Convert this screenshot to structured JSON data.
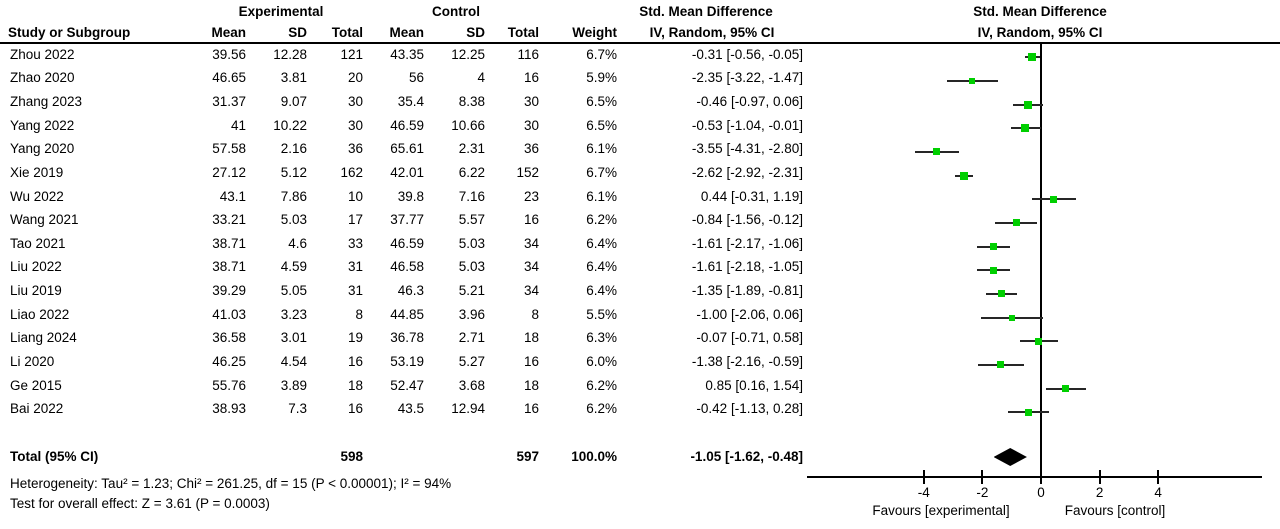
{
  "headers": {
    "group_experimental": "Experimental",
    "group_control": "Control",
    "smd_text_col_line1": "Std. Mean Difference",
    "smd_text_col_line2": "IV, Random, 95% CI",
    "smd_plot_col_line1": "Std. Mean Difference",
    "smd_plot_col_line2": "IV, Random, 95% CI",
    "study": "Study or Subgroup",
    "mean": "Mean",
    "sd": "SD",
    "total": "Total",
    "weight": "Weight"
  },
  "table": {
    "rows": [
      {
        "study": "Zhou 2022",
        "e_mean": "39.56",
        "e_sd": "12.28",
        "e_total": "121",
        "c_mean": "43.35",
        "c_sd": "12.25",
        "c_total": "116",
        "weight": "6.7%",
        "ci": "-0.31 [-0.56, -0.05]"
      },
      {
        "study": "Zhao 2020",
        "e_mean": "46.65",
        "e_sd": "3.81",
        "e_total": "20",
        "c_mean": "56",
        "c_sd": "4",
        "c_total": "16",
        "weight": "5.9%",
        "ci": "-2.35 [-3.22, -1.47]"
      },
      {
        "study": "Zhang 2023",
        "e_mean": "31.37",
        "e_sd": "9.07",
        "e_total": "30",
        "c_mean": "35.4",
        "c_sd": "8.38",
        "c_total": "30",
        "weight": "6.5%",
        "ci": "-0.46 [-0.97, 0.06]"
      },
      {
        "study": "Yang 2022",
        "e_mean": "41",
        "e_sd": "10.22",
        "e_total": "30",
        "c_mean": "46.59",
        "c_sd": "10.66",
        "c_total": "30",
        "weight": "6.5%",
        "ci": "-0.53 [-1.04, -0.01]"
      },
      {
        "study": "Yang 2020",
        "e_mean": "57.58",
        "e_sd": "2.16",
        "e_total": "36",
        "c_mean": "65.61",
        "c_sd": "2.31",
        "c_total": "36",
        "weight": "6.1%",
        "ci": "-3.55 [-4.31, -2.80]"
      },
      {
        "study": "Xie 2019",
        "e_mean": "27.12",
        "e_sd": "5.12",
        "e_total": "162",
        "c_mean": "42.01",
        "c_sd": "6.22",
        "c_total": "152",
        "weight": "6.7%",
        "ci": "-2.62 [-2.92, -2.31]"
      },
      {
        "study": "Wu 2022",
        "e_mean": "43.1",
        "e_sd": "7.86",
        "e_total": "10",
        "c_mean": "39.8",
        "c_sd": "7.16",
        "c_total": "23",
        "weight": "6.1%",
        "ci": "0.44 [-0.31, 1.19]"
      },
      {
        "study": "Wang 2021",
        "e_mean": "33.21",
        "e_sd": "5.03",
        "e_total": "17",
        "c_mean": "37.77",
        "c_sd": "5.57",
        "c_total": "16",
        "weight": "6.2%",
        "ci": "-0.84 [-1.56, -0.12]"
      },
      {
        "study": "Tao 2021",
        "e_mean": "38.71",
        "e_sd": "4.6",
        "e_total": "33",
        "c_mean": "46.59",
        "c_sd": "5.03",
        "c_total": "34",
        "weight": "6.4%",
        "ci": "-1.61 [-2.17, -1.06]"
      },
      {
        "study": "Liu 2022",
        "e_mean": "38.71",
        "e_sd": "4.59",
        "e_total": "31",
        "c_mean": "46.58",
        "c_sd": "5.03",
        "c_total": "34",
        "weight": "6.4%",
        "ci": "-1.61 [-2.18, -1.05]"
      },
      {
        "study": "Liu 2019",
        "e_mean": "39.29",
        "e_sd": "5.05",
        "e_total": "31",
        "c_mean": "46.3",
        "c_sd": "5.21",
        "c_total": "34",
        "weight": "6.4%",
        "ci": "-1.35 [-1.89, -0.81]"
      },
      {
        "study": "Liao 2022",
        "e_mean": "41.03",
        "e_sd": "3.23",
        "e_total": "8",
        "c_mean": "44.85",
        "c_sd": "3.96",
        "c_total": "8",
        "weight": "5.5%",
        "ci": "-1.00 [-2.06, 0.06]"
      },
      {
        "study": "Liang 2024",
        "e_mean": "36.58",
        "e_sd": "3.01",
        "e_total": "19",
        "c_mean": "36.78",
        "c_sd": "2.71",
        "c_total": "18",
        "weight": "6.3%",
        "ci": "-0.07 [-0.71, 0.58]"
      },
      {
        "study": "Li 2020",
        "e_mean": "46.25",
        "e_sd": "4.54",
        "e_total": "16",
        "c_mean": "53.19",
        "c_sd": "5.27",
        "c_total": "16",
        "weight": "6.0%",
        "ci": "-1.38 [-2.16, -0.59]"
      },
      {
        "study": "Ge 2015",
        "e_mean": "55.76",
        "e_sd": "3.89",
        "e_total": "18",
        "c_mean": "52.47",
        "c_sd": "3.68",
        "c_total": "18",
        "weight": "6.2%",
        "ci": "0.85 [0.16, 1.54]"
      },
      {
        "study": "Bai 2022",
        "e_mean": "38.93",
        "e_sd": "7.3",
        "e_total": "16",
        "c_mean": "43.5",
        "c_sd": "12.94",
        "c_total": "16",
        "weight": "6.2%",
        "ci": "-0.42 [-1.13, 0.28]"
      }
    ],
    "total_row": {
      "label": "Total (95% CI)",
      "e_total": "598",
      "c_total": "597",
      "weight": "100.0%",
      "ci": "-1.05 [-1.62, -0.48]"
    },
    "heterogeneity": "Heterogeneity: Tau² = 1.23; Chi² = 261.25, df = 15 (P < 0.00001); I² = 94%",
    "overall_effect": "Test for overall effect: Z = 3.61 (P = 0.0003)"
  },
  "chart_data": {
    "type": "forest",
    "title": "Std. Mean Difference",
    "method": "IV, Random, 95% CI",
    "x_ticks": [
      -4,
      -2,
      0,
      2,
      4
    ],
    "x_range": [
      -8,
      7.5
    ],
    "zero_line": 0,
    "favours_left": "Favours [experimental]",
    "favours_right": "Favours [control]",
    "marker_color": "#00cf00",
    "studies": [
      {
        "name": "Zhou 2022",
        "est": -0.31,
        "lo": -0.56,
        "hi": -0.05,
        "weight_pct": 6.7
      },
      {
        "name": "Zhao 2020",
        "est": -2.35,
        "lo": -3.22,
        "hi": -1.47,
        "weight_pct": 5.9
      },
      {
        "name": "Zhang 2023",
        "est": -0.46,
        "lo": -0.97,
        "hi": 0.06,
        "weight_pct": 6.5
      },
      {
        "name": "Yang 2022",
        "est": -0.53,
        "lo": -1.04,
        "hi": -0.01,
        "weight_pct": 6.5
      },
      {
        "name": "Yang 2020",
        "est": -3.55,
        "lo": -4.31,
        "hi": -2.8,
        "weight_pct": 6.1
      },
      {
        "name": "Xie 2019",
        "est": -2.62,
        "lo": -2.92,
        "hi": -2.31,
        "weight_pct": 6.7
      },
      {
        "name": "Wu 2022",
        "est": 0.44,
        "lo": -0.31,
        "hi": 1.19,
        "weight_pct": 6.1
      },
      {
        "name": "Wang 2021",
        "est": -0.84,
        "lo": -1.56,
        "hi": -0.12,
        "weight_pct": 6.2
      },
      {
        "name": "Tao 2021",
        "est": -1.61,
        "lo": -2.17,
        "hi": -1.06,
        "weight_pct": 6.4
      },
      {
        "name": "Liu 2022",
        "est": -1.61,
        "lo": -2.18,
        "hi": -1.05,
        "weight_pct": 6.4
      },
      {
        "name": "Liu 2019",
        "est": -1.35,
        "lo": -1.89,
        "hi": -0.81,
        "weight_pct": 6.4
      },
      {
        "name": "Liao 2022",
        "est": -1.0,
        "lo": -2.06,
        "hi": 0.06,
        "weight_pct": 5.5
      },
      {
        "name": "Liang 2024",
        "est": -0.07,
        "lo": -0.71,
        "hi": 0.58,
        "weight_pct": 6.3
      },
      {
        "name": "Li 2020",
        "est": -1.38,
        "lo": -2.16,
        "hi": -0.59,
        "weight_pct": 6.0
      },
      {
        "name": "Ge 2015",
        "est": 0.85,
        "lo": 0.16,
        "hi": 1.54,
        "weight_pct": 6.2
      },
      {
        "name": "Bai 2022",
        "est": -0.42,
        "lo": -1.13,
        "hi": 0.28,
        "weight_pct": 6.2
      }
    ],
    "total": {
      "label": "Total (95% CI)",
      "est": -1.05,
      "lo": -1.62,
      "hi": -0.48
    }
  }
}
